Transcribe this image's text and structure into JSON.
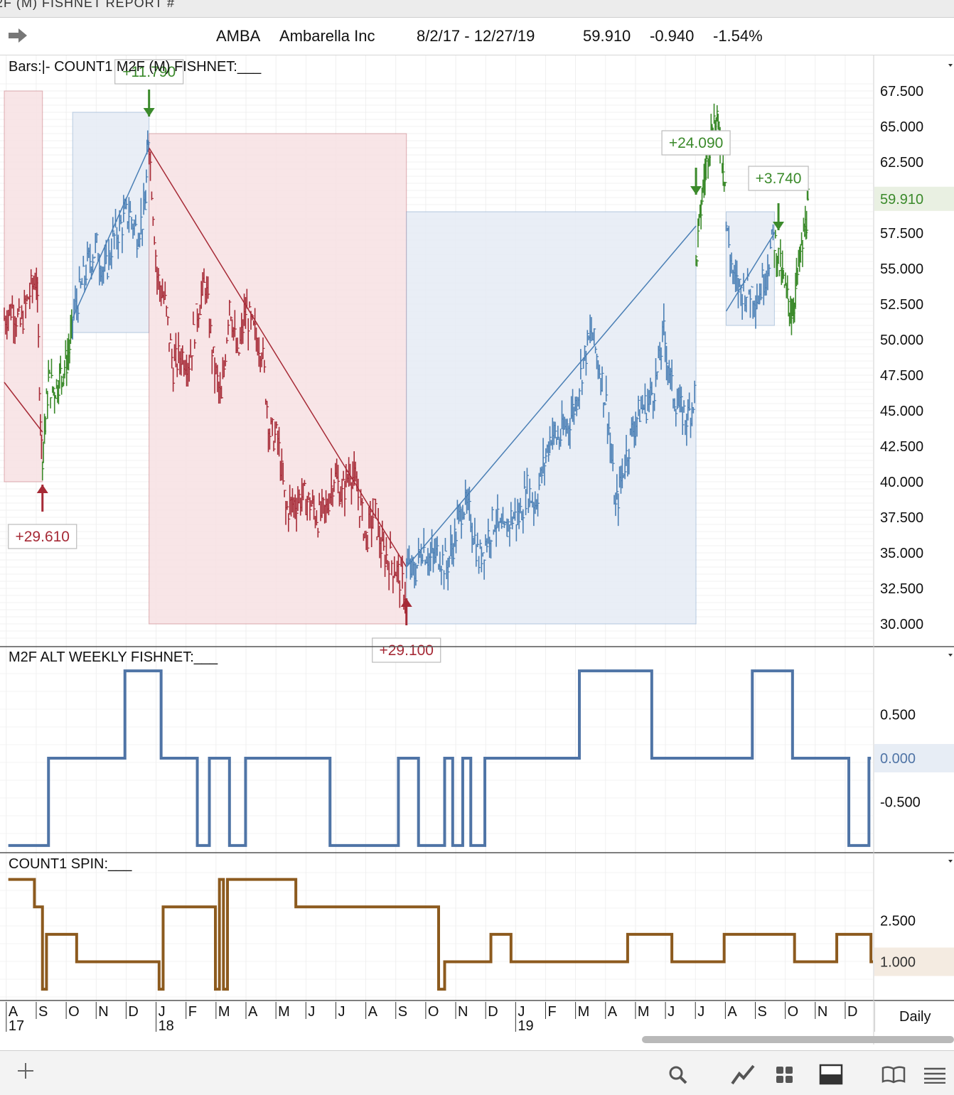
{
  "window": {
    "title_fragment": "2F (M) FISHNET  REPORT #"
  },
  "header": {
    "symbol": "AMBA",
    "company": "Ambarella Inc",
    "date_range": "8/2/17 - 12/27/19",
    "last_price": "59.910",
    "change": "-0.940",
    "change_pct": "-1.54%",
    "nav_icon": "right-arrow-icon"
  },
  "colors": {
    "down_trend": "#a62a36",
    "up_trend": "#4a7fb5",
    "confirm": "#3b8a2b",
    "down_box": "#f7e1e3",
    "up_box": "#e5ebf5",
    "weekly_line": "#4f74a6",
    "spin_line": "#8c5a1e",
    "label_green": "#3b8a2b",
    "label_red": "#a62a36"
  },
  "panels": {
    "main_label": "Bars:|-    COUNT1 M2F (M) FISHNET:___",
    "weekly_label": "M2F ALT WEEKLY FISHNET:___",
    "spin_label": "COUNT1 SPIN:___"
  },
  "chart_data": [
    {
      "type": "line",
      "subtype": "price-bars",
      "title": "AMBA Ambarella Inc",
      "y_ticks": [
        "67.500",
        "65.000",
        "62.500",
        "57.500",
        "55.000",
        "52.500",
        "50.000",
        "47.500",
        "45.000",
        "42.500",
        "40.000",
        "37.500",
        "35.000",
        "32.500",
        "30.000"
      ],
      "last_value_label": "59.910",
      "ylim": [
        28.5,
        68.5
      ],
      "x_month_labels": [
        "A",
        "S",
        "O",
        "N",
        "D",
        "J",
        "F",
        "M",
        "A",
        "M",
        "J",
        "J",
        "A",
        "S",
        "O",
        "N",
        "D",
        "J",
        "F",
        "M",
        "A",
        "M",
        "J",
        "J",
        "A",
        "S",
        "O",
        "N",
        "D"
      ],
      "x_year_labels": [
        "17",
        "18",
        "19"
      ],
      "timeframe": "Daily",
      "series": [
        {
          "color_key": "down_trend",
          "x": [
            0.0,
            0.4,
            0.8,
            1.2,
            1.6,
            1.9
          ],
          "values": [
            51.5,
            52.3,
            51.0,
            53.0,
            54.5,
            40.0
          ]
        },
        {
          "color_key": "confirm",
          "x": [
            1.9,
            2.2,
            2.5,
            2.8,
            3.1,
            3.4
          ],
          "values": [
            42.0,
            47.0,
            46.5,
            47.5,
            48.5,
            50.5
          ]
        },
        {
          "color_key": "up_trend",
          "x": [
            3.4,
            3.8,
            4.2,
            4.6,
            5.0,
            5.4,
            5.8,
            6.2,
            6.6,
            7.0,
            7.2
          ],
          "values": [
            51.5,
            53.5,
            55.5,
            56.5,
            54.5,
            57.0,
            58.0,
            59.0,
            57.5,
            59.0,
            65.5
          ]
        },
        {
          "color_key": "down_trend",
          "x": [
            7.2,
            7.6,
            8.0,
            8.4,
            8.8,
            9.2,
            9.6,
            10.0,
            10.4,
            10.8,
            11.2,
            11.6,
            12.0,
            12.4,
            12.8,
            13.2,
            13.6,
            14.0,
            14.4,
            14.8,
            15.2,
            15.6,
            16.0,
            16.4,
            16.8,
            17.2,
            17.6,
            18.0,
            18.4,
            18.8,
            19.2,
            19.6,
            20.0
          ],
          "values": [
            64.0,
            54.5,
            52.5,
            48.0,
            49.0,
            48.5,
            52.0,
            54.0,
            48.5,
            45.5,
            53.0,
            48.5,
            52.0,
            50.5,
            49.5,
            43.5,
            43.0,
            38.0,
            38.5,
            39.0,
            38.5,
            37.5,
            38.0,
            40.5,
            39.0,
            41.0,
            39.0,
            36.0,
            38.0,
            35.0,
            34.5,
            33.5,
            32.0
          ]
        },
        {
          "color_key": "up_trend",
          "x": [
            20.0,
            20.4,
            20.8,
            21.2,
            21.6,
            22.0,
            22.4,
            22.8,
            23.2,
            23.6,
            24.0,
            24.4,
            24.8,
            25.2,
            25.6,
            26.0,
            26.4,
            26.8,
            27.2,
            27.6,
            28.0,
            28.4,
            28.8,
            29.2,
            29.6,
            30.0,
            30.4,
            30.8,
            31.2,
            31.6,
            32.0,
            32.4,
            32.8,
            33.2,
            33.6,
            34.0,
            34.4
          ],
          "values": [
            34.0,
            33.5,
            35.5,
            34.5,
            35.0,
            34.0,
            36.0,
            38.5,
            37.5,
            34.5,
            36.0,
            37.5,
            36.0,
            37.5,
            37.5,
            39.5,
            38.5,
            41.0,
            43.5,
            43.0,
            44.0,
            45.5,
            48.5,
            50.5,
            48.0,
            45.0,
            38.0,
            41.0,
            43.5,
            45.0,
            45.5,
            47.0,
            50.5,
            46.5,
            45.0,
            44.5,
            46.5
          ]
        },
        {
          "color_key": "confirm",
          "x": [
            34.4,
            34.7,
            35.0,
            35.3,
            35.6,
            35.9
          ],
          "values": [
            55.5,
            60.0,
            63.5,
            65.5,
            64.5,
            60.5
          ]
        },
        {
          "color_key": "up_trend",
          "x": [
            35.9,
            36.3,
            36.7,
            37.1,
            37.5,
            37.9,
            38.3
          ],
          "values": [
            58.0,
            54.0,
            53.5,
            53.5,
            53.0,
            55.0,
            57.5
          ]
        },
        {
          "color_key": "confirm",
          "x": [
            38.3,
            38.6,
            38.9,
            39.2,
            39.5,
            39.8,
            40.0
          ],
          "values": [
            57.0,
            55.0,
            53.0,
            52.0,
            55.0,
            57.5,
            60.0
          ]
        }
      ],
      "annotations": [
        {
          "text": "+29.610",
          "color_key": "label_red",
          "x": 1.9,
          "y": 40.0,
          "arrow": "up"
        },
        {
          "text": "+11.790",
          "color_key": "label_green",
          "x": 7.2,
          "y": 65.5,
          "arrow": "down"
        },
        {
          "text": "+29.100",
          "color_key": "label_red",
          "x": 20.0,
          "y": 32.0,
          "arrow": "up"
        },
        {
          "text": "+24.090",
          "color_key": "label_green",
          "x": 34.4,
          "y": 60.0,
          "arrow": "down"
        },
        {
          "text": "+3.740",
          "color_key": "label_green",
          "x": 38.5,
          "y": 57.5,
          "arrow": "down"
        }
      ],
      "trend_lines": [
        {
          "color_key": "down_trend",
          "x": [
            0.0,
            1.9
          ],
          "values": [
            47.0,
            43.5
          ]
        },
        {
          "color_key": "up_trend",
          "x": [
            3.4,
            7.2
          ],
          "values": [
            51.5,
            63.5
          ]
        },
        {
          "color_key": "down_trend",
          "x": [
            7.2,
            20.0
          ],
          "values": [
            63.5,
            34.0
          ]
        },
        {
          "color_key": "up_trend",
          "x": [
            20.0,
            34.4
          ],
          "values": [
            34.0,
            58.0
          ]
        },
        {
          "color_key": "up_trend",
          "x": [
            35.9,
            38.3
          ],
          "values": [
            52.0,
            57.5
          ]
        }
      ],
      "boxes": [
        {
          "color_key": "down_box",
          "x": [
            0.0,
            1.9
          ],
          "y": [
            40.0,
            67.5
          ]
        },
        {
          "color_key": "up_box",
          "x": [
            3.4,
            7.2
          ],
          "y": [
            50.5,
            66.0
          ]
        },
        {
          "color_key": "down_box",
          "x": [
            7.2,
            20.0
          ],
          "y": [
            30.0,
            64.5
          ]
        },
        {
          "color_key": "up_box",
          "x": [
            20.0,
            34.4
          ],
          "y": [
            30.0,
            59.0
          ]
        },
        {
          "color_key": "up_box",
          "x": [
            35.9,
            38.3
          ],
          "y": [
            51.0,
            59.0
          ]
        }
      ]
    },
    {
      "type": "line",
      "title": "M2F ALT WEEKLY FISHNET",
      "y_ticks": [
        "0.500",
        "0.000",
        "-0.500"
      ],
      "last_value_label": "0.000",
      "ylim": [
        -1.05,
        1.05
      ],
      "x": [
        0.0,
        0.6,
        0.6,
        4.6,
        4.6,
        6.6,
        6.6,
        7.6,
        7.6,
        10.0,
        10.0,
        10.6,
        10.6,
        11.8,
        11.8,
        16.8,
        16.8,
        18.8,
        18.8,
        21.6,
        21.6,
        22.4,
        22.4,
        26.4,
        26.4,
        30.4,
        30.4,
        33.6,
        33.6,
        35.6,
        35.6,
        38.8,
        38.8,
        39.8,
        39.8
      ],
      "values": [
        0,
        0,
        -1,
        -1,
        0,
        0,
        1,
        1,
        0,
        0,
        -1,
        -1,
        0,
        0,
        -1,
        -1,
        0,
        0,
        -1,
        -1,
        0,
        0,
        -1,
        -1,
        0,
        0,
        1,
        1,
        0,
        0,
        1,
        1,
        0,
        0,
        -1
      ],
      "step_segments": [
        {
          "x": [
            0.2,
            2.2
          ],
          "v": -1
        },
        {
          "x": [
            2.2,
            6.0
          ],
          "v": 0
        },
        {
          "x": [
            6.0,
            7.8
          ],
          "v": 1
        },
        {
          "x": [
            7.8,
            9.6
          ],
          "v": 0
        },
        {
          "x": [
            9.6,
            10.2
          ],
          "v": -1
        },
        {
          "x": [
            10.2,
            11.2
          ],
          "v": 0
        },
        {
          "x": [
            11.2,
            12.0
          ],
          "v": -1
        },
        {
          "x": [
            12.0,
            16.2
          ],
          "v": 0
        },
        {
          "x": [
            16.2,
            19.6
          ],
          "v": -1
        },
        {
          "x": [
            19.6,
            20.6
          ],
          "v": 0
        },
        {
          "x": [
            20.6,
            21.9
          ],
          "v": -1
        },
        {
          "x": [
            21.9,
            22.3
          ],
          "v": 0
        },
        {
          "x": [
            22.3,
            22.8
          ],
          "v": -1
        },
        {
          "x": [
            22.8,
            23.2
          ],
          "v": 0
        },
        {
          "x": [
            23.2,
            23.9
          ],
          "v": -1
        },
        {
          "x": [
            23.9,
            28.6
          ],
          "v": 0
        },
        {
          "x": [
            28.6,
            32.2
          ],
          "v": 1
        },
        {
          "x": [
            32.2,
            37.2
          ],
          "v": 0
        },
        {
          "x": [
            37.2,
            39.2
          ],
          "v": 1
        },
        {
          "x": [
            39.2,
            42.0
          ],
          "v": 0
        },
        {
          "x": [
            42.0,
            43.0
          ],
          "v": -1
        },
        {
          "x": [
            43.0,
            43.1
          ],
          "v": 0
        }
      ]
    },
    {
      "type": "line",
      "title": "COUNT1 SPIN",
      "y_ticks": [
        "2.500",
        "1.000"
      ],
      "last_value_label": "1.000",
      "ylim": [
        -0.1,
        4.3
      ],
      "step_segments": [
        {
          "x": [
            0.2,
            1.5
          ],
          "v": 4.0
        },
        {
          "x": [
            1.5,
            1.9
          ],
          "v": 3.0
        },
        {
          "x": [
            1.9,
            2.1
          ],
          "v": 0.0
        },
        {
          "x": [
            2.1,
            3.6
          ],
          "v": 2.0
        },
        {
          "x": [
            3.6,
            7.7
          ],
          "v": 1.0
        },
        {
          "x": [
            7.7,
            7.9
          ],
          "v": 0.0
        },
        {
          "x": [
            7.9,
            10.5
          ],
          "v": 3.0
        },
        {
          "x": [
            10.5,
            10.7
          ],
          "v": 0.0
        },
        {
          "x": [
            10.7,
            10.9
          ],
          "v": 4.0
        },
        {
          "x": [
            10.9,
            11.1
          ],
          "v": 0.0
        },
        {
          "x": [
            11.1,
            14.5
          ],
          "v": 4.0
        },
        {
          "x": [
            14.5,
            21.6
          ],
          "v": 3.0
        },
        {
          "x": [
            21.6,
            21.9
          ],
          "v": 0.0
        },
        {
          "x": [
            21.9,
            24.2
          ],
          "v": 1.0
        },
        {
          "x": [
            24.2,
            25.2
          ],
          "v": 2.0
        },
        {
          "x": [
            25.2,
            31.0
          ],
          "v": 1.0
        },
        {
          "x": [
            31.0,
            33.2
          ],
          "v": 2.0
        },
        {
          "x": [
            33.2,
            35.8
          ],
          "v": 1.0
        },
        {
          "x": [
            35.8,
            39.3
          ],
          "v": 2.0
        },
        {
          "x": [
            39.3,
            41.4
          ],
          "v": 1.0
        },
        {
          "x": [
            41.4,
            43.1
          ],
          "v": 2.0
        },
        {
          "x": [
            43.1,
            43.2
          ],
          "v": 1.0
        }
      ]
    }
  ],
  "toolbar": {
    "add_icon": "plus-icon",
    "search_icon": "magnifier-icon",
    "draw_icon": "trendline-icon",
    "grid_icon": "grid-icon",
    "layout_icon": "panel-layout-icon",
    "book_icon": "book-icon",
    "menu_icon": "hamburger-menu-icon"
  }
}
